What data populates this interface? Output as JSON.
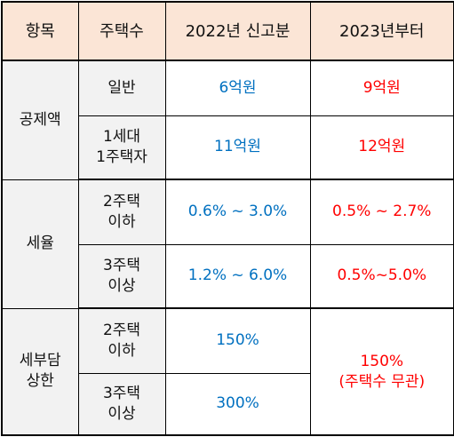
{
  "headers": [
    "항목",
    "주택수",
    "2022년 신고분",
    "2023년부터"
  ],
  "groups": [
    {
      "category": "공제액",
      "rows": [
        {
          "sub": [
            "일반"
          ],
          "y2022": "6억원",
          "y2023": "9억원"
        },
        {
          "sub": [
            "1세대",
            "1주택자"
          ],
          "y2022": "11억원",
          "y2023": "12억원"
        }
      ]
    },
    {
      "category": "세율",
      "rows": [
        {
          "sub": [
            "2주택",
            "이하"
          ],
          "y2022": "0.6% ~ 3.0%",
          "y2023": "0.5% ~ 2.7%"
        },
        {
          "sub": [
            "3주택",
            "이상"
          ],
          "y2022": "1.2% ~ 6.0%",
          "y2023": "0.5%~5.0%"
        }
      ]
    },
    {
      "category": [
        "세부담",
        "상한"
      ],
      "rows": [
        {
          "sub": [
            "2주택",
            "이하"
          ],
          "y2022": "150%"
        },
        {
          "sub": [
            "3주택",
            "이상"
          ],
          "y2022": "300%"
        }
      ],
      "y2023_merged": [
        "150%",
        "(주택수 무관)"
      ]
    }
  ],
  "colors": {
    "header_bg": "#fbe5d6",
    "label_bg": "#f2f2f2",
    "y2022_text": "#0070c0",
    "y2023_text": "#ff0000"
  }
}
